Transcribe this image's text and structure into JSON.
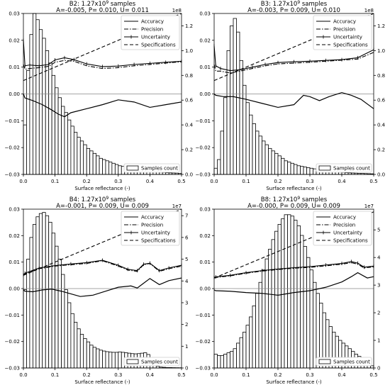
{
  "chart_data": [
    {
      "type": "bar",
      "title_prefix": "B2:  1.27x10",
      "title_exp": "9",
      "title_suffix": " samples",
      "subtitle": "A=-0.005, P= 0.010, U= 0.011",
      "xlabel": "Surface reflectance (-)",
      "xlim": [
        0,
        0.5
      ],
      "ylim": [
        -0.03,
        0.03
      ],
      "y2lim": [
        0,
        1.3
      ],
      "y2_multiplier": "1e8",
      "xticks": [
        "0.0",
        "0.1",
        "0.2",
        "0.3",
        "0.4",
        "0.5"
      ],
      "yticks": [
        "−0.03",
        "−0.02",
        "−0.01",
        "0.00",
        "0.01",
        "0.02",
        "0.03"
      ],
      "y2ticks": [
        "0.0",
        "0.2",
        "0.4",
        "0.6",
        "0.8",
        "1.0",
        "1.2"
      ],
      "legend": [
        "Accuracy",
        "Precision",
        "Uncertainty",
        "Specifications"
      ],
      "hist_legend": "Samples count",
      "hist_x": [
        0.005,
        0.015,
        0.025,
        0.035,
        0.045,
        0.055,
        0.065,
        0.075,
        0.085,
        0.095,
        0.105,
        0.115,
        0.125,
        0.135,
        0.145,
        0.155,
        0.165,
        0.175,
        0.185,
        0.195,
        0.205,
        0.215,
        0.225,
        0.235,
        0.245,
        0.255,
        0.265,
        0.275,
        0.285,
        0.295,
        0.305,
        0.315,
        0.325,
        0.335,
        0.345,
        0.355,
        0.365,
        0.375,
        0.385,
        0.395,
        0.405,
        0.415,
        0.425,
        0.435,
        0.445,
        0.455,
        0.465,
        0.475,
        0.485,
        0.495
      ],
      "hist_values": [
        0.4,
        0.84,
        1.13,
        1.3,
        1.25,
        1.17,
        1.1,
        1.0,
        0.9,
        0.8,
        0.7,
        0.62,
        0.55,
        0.5,
        0.44,
        0.39,
        0.34,
        0.3,
        0.27,
        0.24,
        0.21,
        0.19,
        0.17,
        0.15,
        0.13,
        0.12,
        0.11,
        0.1,
        0.09,
        0.08,
        0.07,
        0.065,
        0.06,
        0.055,
        0.05,
        0.045,
        0.04,
        0.036,
        0.032,
        0.028,
        0.025,
        0.022,
        0.02,
        0.018,
        0.016,
        0.014,
        0.012,
        0.011,
        0.01,
        0.009
      ],
      "accuracy": {
        "x": [
          0,
          0.005,
          0.03,
          0.06,
          0.09,
          0.11,
          0.13,
          0.15,
          0.2,
          0.25,
          0.3,
          0.35,
          0.4,
          0.45,
          0.5
        ],
        "y": [
          0.0,
          -0.0015,
          -0.0025,
          -0.004,
          -0.006,
          -0.0075,
          -0.0085,
          -0.007,
          -0.0055,
          -0.004,
          -0.0022,
          -0.003,
          -0.005,
          -0.004,
          -0.003
        ]
      },
      "precision": {
        "x": [
          0,
          0.005,
          0.02,
          0.05,
          0.08,
          0.1,
          0.13,
          0.16,
          0.2,
          0.25,
          0.3,
          0.35,
          0.4,
          0.45,
          0.5
        ],
        "y": [
          0.011,
          0.0092,
          0.0095,
          0.0098,
          0.0103,
          0.0118,
          0.0125,
          0.0122,
          0.0105,
          0.0095,
          0.0098,
          0.0105,
          0.011,
          0.0115,
          0.012
        ]
      },
      "uncertainty": {
        "x": [
          0,
          0.005,
          0.02,
          0.05,
          0.08,
          0.1,
          0.13,
          0.16,
          0.2,
          0.25,
          0.3,
          0.35,
          0.4,
          0.45,
          0.5
        ],
        "y": [
          0.02,
          0.0105,
          0.0108,
          0.0105,
          0.011,
          0.0127,
          0.0135,
          0.0128,
          0.0112,
          0.0102,
          0.0104,
          0.011,
          0.0114,
          0.0118,
          0.0122
        ]
      },
      "specifications": {
        "x": [
          0,
          0.5
        ],
        "y": [
          0.005,
          0.03
        ]
      }
    },
    {
      "type": "bar",
      "title_prefix": "B3:  1.27x10",
      "title_exp": "9",
      "title_suffix": " samples",
      "subtitle": "A=-0.003, P= 0.009, U= 0.010",
      "xlabel": "Surface reflectance (-)",
      "xlim": [
        0,
        0.5
      ],
      "ylim": [
        -0.03,
        0.03
      ],
      "y2lim": [
        0,
        1.3
      ],
      "y2_multiplier": "1e8",
      "xticks": [
        "0.0",
        "0.1",
        "0.2",
        "0.3",
        "0.4",
        "0.5"
      ],
      "yticks": [
        "−0.03",
        "−0.02",
        "−0.01",
        "0.00",
        "0.01",
        "0.02",
        "0.03"
      ],
      "y2ticks": [
        "0.0",
        "0.2",
        "0.4",
        "0.6",
        "0.8",
        "1.0",
        "1.2"
      ],
      "legend": [
        "Accuracy",
        "Precision",
        "Uncertainty",
        "Specifications"
      ],
      "hist_legend": "Samples count",
      "hist_x": [
        0.005,
        0.015,
        0.025,
        0.035,
        0.045,
        0.055,
        0.065,
        0.075,
        0.085,
        0.095,
        0.105,
        0.115,
        0.125,
        0.135,
        0.145,
        0.155,
        0.165,
        0.175,
        0.185,
        0.195,
        0.205,
        0.215,
        0.225,
        0.235,
        0.245,
        0.255,
        0.265,
        0.275,
        0.285,
        0.295,
        0.305,
        0.315,
        0.325,
        0.335,
        0.345,
        0.355,
        0.365,
        0.375,
        0.385,
        0.395,
        0.405,
        0.415,
        0.425,
        0.435,
        0.445,
        0.455,
        0.465,
        0.475,
        0.485,
        0.495
      ],
      "hist_values": [
        0.05,
        0.12,
        0.35,
        0.62,
        1.0,
        1.2,
        1.26,
        1.15,
        0.92,
        0.72,
        0.58,
        0.48,
        0.41,
        0.35,
        0.31,
        0.27,
        0.24,
        0.21,
        0.19,
        0.17,
        0.15,
        0.13,
        0.11,
        0.1,
        0.09,
        0.08,
        0.07,
        0.065,
        0.06,
        0.055,
        0.05,
        0.045,
        0.04,
        0.036,
        0.032,
        0.028,
        0.025,
        0.022,
        0.02,
        0.018,
        0.016,
        0.014,
        0.012,
        0.011,
        0.01,
        0.009,
        0.008,
        0.007,
        0.006,
        0.005
      ],
      "accuracy": {
        "x": [
          0,
          0.005,
          0.03,
          0.06,
          0.1,
          0.15,
          0.2,
          0.25,
          0.28,
          0.3,
          0.33,
          0.36,
          0.4,
          0.43,
          0.46,
          0.5
        ],
        "y": [
          0.0,
          -0.0005,
          -0.001,
          -0.001,
          -0.002,
          -0.0035,
          -0.005,
          -0.004,
          -0.0005,
          -0.001,
          -0.0025,
          -0.001,
          0.0005,
          -0.0005,
          -0.002,
          -0.0055
        ]
      },
      "precision": {
        "x": [
          0,
          0.005,
          0.02,
          0.05,
          0.08,
          0.12,
          0.16,
          0.2,
          0.25,
          0.3,
          0.35,
          0.4,
          0.45,
          0.5
        ],
        "y": [
          0.011,
          0.0085,
          0.0085,
          0.0078,
          0.0085,
          0.0095,
          0.0105,
          0.0112,
          0.0115,
          0.0118,
          0.0122,
          0.0126,
          0.013,
          0.0155
        ]
      },
      "uncertainty": {
        "x": [
          0,
          0.005,
          0.02,
          0.05,
          0.08,
          0.12,
          0.16,
          0.2,
          0.25,
          0.3,
          0.35,
          0.4,
          0.45,
          0.5
        ],
        "y": [
          0.018,
          0.0105,
          0.0095,
          0.0087,
          0.009,
          0.01,
          0.011,
          0.0117,
          0.012,
          0.0122,
          0.0125,
          0.0128,
          0.0135,
          0.0165
        ]
      },
      "specifications": {
        "x": [
          0,
          0.5
        ],
        "y": [
          0.005,
          0.03
        ]
      }
    },
    {
      "type": "bar",
      "title_prefix": "B4:  1.27x10",
      "title_exp": "9",
      "title_suffix": " samples",
      "subtitle": "A=-0.001, P= 0.009, U= 0.009",
      "xlabel": "Surface reflectance (-)",
      "xlim": [
        0,
        0.5
      ],
      "ylim": [
        -0.03,
        0.03
      ],
      "y2lim": [
        0,
        7.3
      ],
      "y2_multiplier": "1e7",
      "xticks": [
        "0.0",
        "0.1",
        "0.2",
        "0.3",
        "0.4",
        "0.5"
      ],
      "yticks": [
        "−0.03",
        "−0.02",
        "−0.01",
        "0.00",
        "0.01",
        "0.02",
        "0.03"
      ],
      "y2ticks": [
        "0",
        "1",
        "2",
        "3",
        "4",
        "5",
        "6",
        "7"
      ],
      "legend": [
        "Accuracy",
        "Precision",
        "Uncertainty",
        "Specifications"
      ],
      "hist_legend": "Samples count",
      "hist_x": [
        0.005,
        0.015,
        0.025,
        0.035,
        0.045,
        0.055,
        0.065,
        0.075,
        0.085,
        0.095,
        0.105,
        0.115,
        0.125,
        0.135,
        0.145,
        0.155,
        0.165,
        0.175,
        0.185,
        0.195,
        0.205,
        0.215,
        0.225,
        0.235,
        0.245,
        0.255,
        0.265,
        0.275,
        0.285,
        0.295,
        0.305,
        0.315,
        0.325,
        0.335,
        0.345,
        0.355,
        0.365,
        0.375,
        0.385,
        0.395,
        0.405,
        0.415,
        0.425,
        0.435,
        0.445,
        0.455,
        0.465,
        0.475,
        0.485,
        0.495
      ],
      "hist_values": [
        3.6,
        5.0,
        6.0,
        6.6,
        6.95,
        7.1,
        7.15,
        7.0,
        6.7,
        6.2,
        5.6,
        5.0,
        4.3,
        3.6,
        3.0,
        2.5,
        2.1,
        1.8,
        1.55,
        1.35,
        1.2,
        1.05,
        0.95,
        0.88,
        0.82,
        0.78,
        0.75,
        0.73,
        0.72,
        0.72,
        0.74,
        0.72,
        0.7,
        0.68,
        0.66,
        0.65,
        0.66,
        0.68,
        0.7,
        0.62,
        0.45,
        0.2,
        0.08,
        0.04,
        0.03,
        0.02,
        0.02,
        0.015,
        0.012,
        0.01
      ],
      "accuracy": {
        "x": [
          0,
          0.005,
          0.03,
          0.06,
          0.09,
          0.12,
          0.15,
          0.18,
          0.22,
          0.26,
          0.3,
          0.34,
          0.36,
          0.38,
          0.4,
          0.43,
          0.46,
          0.5
        ],
        "y": [
          -0.0005,
          -0.001,
          -0.0012,
          -0.0005,
          -0.0002,
          -0.001,
          -0.002,
          -0.003,
          -0.0025,
          -0.001,
          0.0005,
          0.001,
          0.0002,
          0.002,
          0.0038,
          0.0015,
          0.003,
          0.004
        ]
      },
      "precision": {
        "x": [
          0,
          0.005,
          0.05,
          0.1,
          0.15,
          0.2,
          0.25,
          0.3,
          0.33,
          0.36,
          0.38,
          0.4,
          0.43,
          0.46,
          0.5
        ],
        "y": [
          0.005,
          0.0055,
          0.0075,
          0.0085,
          0.009,
          0.0095,
          0.0105,
          0.0085,
          0.007,
          0.0065,
          0.009,
          0.0095,
          0.0065,
          0.0075,
          0.0085
        ]
      },
      "uncertainty": {
        "x": [
          0,
          0.005,
          0.05,
          0.1,
          0.15,
          0.2,
          0.25,
          0.3,
          0.33,
          0.36,
          0.38,
          0.4,
          0.43,
          0.46,
          0.5
        ],
        "y": [
          0.0052,
          0.0058,
          0.0078,
          0.0087,
          0.0093,
          0.0098,
          0.0107,
          0.0088,
          0.0073,
          0.0068,
          0.0092,
          0.0096,
          0.0068,
          0.0078,
          0.0088
        ]
      },
      "specifications": {
        "x": [
          0,
          0.5
        ],
        "y": [
          0.005,
          0.03
        ]
      }
    },
    {
      "type": "bar",
      "title_prefix": "B8:  1.27x10",
      "title_exp": "9",
      "title_suffix": " samples",
      "subtitle": "A=-0.000, P= 0.009, U= 0.009",
      "xlabel": "Surface reflectance (-)",
      "xlim": [
        0,
        0.5
      ],
      "ylim": [
        -0.03,
        0.03
      ],
      "y2lim": [
        0,
        5.75
      ],
      "y2_multiplier": "1e7",
      "xticks": [
        "0.0",
        "0.1",
        "0.2",
        "0.3",
        "0.4",
        "0.5"
      ],
      "yticks": [
        "−0.03",
        "−0.02",
        "−0.01",
        "0.00",
        "0.01",
        "0.02",
        "0.03"
      ],
      "y2ticks": [
        "0",
        "1",
        "2",
        "3",
        "4",
        "5"
      ],
      "legend": [
        "Accuracy",
        "Precision",
        "Uncertainty",
        "Specifications"
      ],
      "hist_legend": "Samples count",
      "hist_x": [
        0.005,
        0.015,
        0.025,
        0.035,
        0.045,
        0.055,
        0.065,
        0.075,
        0.085,
        0.095,
        0.105,
        0.115,
        0.125,
        0.135,
        0.145,
        0.155,
        0.165,
        0.175,
        0.185,
        0.195,
        0.205,
        0.215,
        0.225,
        0.235,
        0.245,
        0.255,
        0.265,
        0.275,
        0.285,
        0.295,
        0.305,
        0.315,
        0.325,
        0.335,
        0.345,
        0.355,
        0.365,
        0.375,
        0.385,
        0.395,
        0.405,
        0.415,
        0.425,
        0.435,
        0.445,
        0.455,
        0.465,
        0.475,
        0.485,
        0.495
      ],
      "hist_values": [
        0.5,
        0.45,
        0.45,
        0.5,
        0.55,
        0.6,
        0.7,
        0.9,
        1.1,
        1.3,
        1.55,
        1.85,
        2.25,
        2.7,
        3.1,
        3.55,
        3.95,
        4.3,
        4.65,
        4.95,
        5.2,
        5.4,
        5.55,
        5.55,
        5.5,
        5.35,
        5.15,
        4.8,
        4.4,
        4.0,
        3.55,
        3.1,
        2.7,
        2.35,
        2.0,
        1.75,
        1.5,
        1.3,
        1.15,
        1.0,
        0.9,
        0.8,
        0.7,
        0.6,
        0.5,
        0.42,
        0.32,
        0.22,
        0.14,
        0.08
      ],
      "accuracy": {
        "x": [
          0,
          0.005,
          0.05,
          0.1,
          0.15,
          0.2,
          0.25,
          0.3,
          0.35,
          0.4,
          0.43,
          0.45,
          0.48,
          0.5
        ],
        "y": [
          -0.0005,
          -0.0008,
          -0.001,
          -0.0015,
          -0.0018,
          -0.0025,
          -0.0015,
          -0.0008,
          0.0005,
          0.0025,
          0.0045,
          0.006,
          0.004,
          0.0045
        ]
      },
      "precision": {
        "x": [
          0,
          0.005,
          0.05,
          0.1,
          0.15,
          0.2,
          0.25,
          0.3,
          0.35,
          0.4,
          0.43,
          0.45,
          0.47,
          0.5
        ],
        "y": [
          0.004,
          0.0042,
          0.0048,
          0.0058,
          0.0066,
          0.0072,
          0.0077,
          0.008,
          0.0086,
          0.0092,
          0.0098,
          0.0092,
          0.0078,
          0.0082
        ]
      },
      "uncertainty": {
        "x": [
          0,
          0.005,
          0.05,
          0.1,
          0.15,
          0.2,
          0.25,
          0.3,
          0.35,
          0.4,
          0.43,
          0.45,
          0.47,
          0.5
        ],
        "y": [
          0.0042,
          0.0044,
          0.005,
          0.006,
          0.0068,
          0.0074,
          0.0079,
          0.0083,
          0.0089,
          0.0095,
          0.0102,
          0.0096,
          0.0081,
          0.0085
        ]
      },
      "specifications": {
        "x": [
          0,
          0.5
        ],
        "y": [
          0.004,
          0.029
        ]
      }
    }
  ]
}
